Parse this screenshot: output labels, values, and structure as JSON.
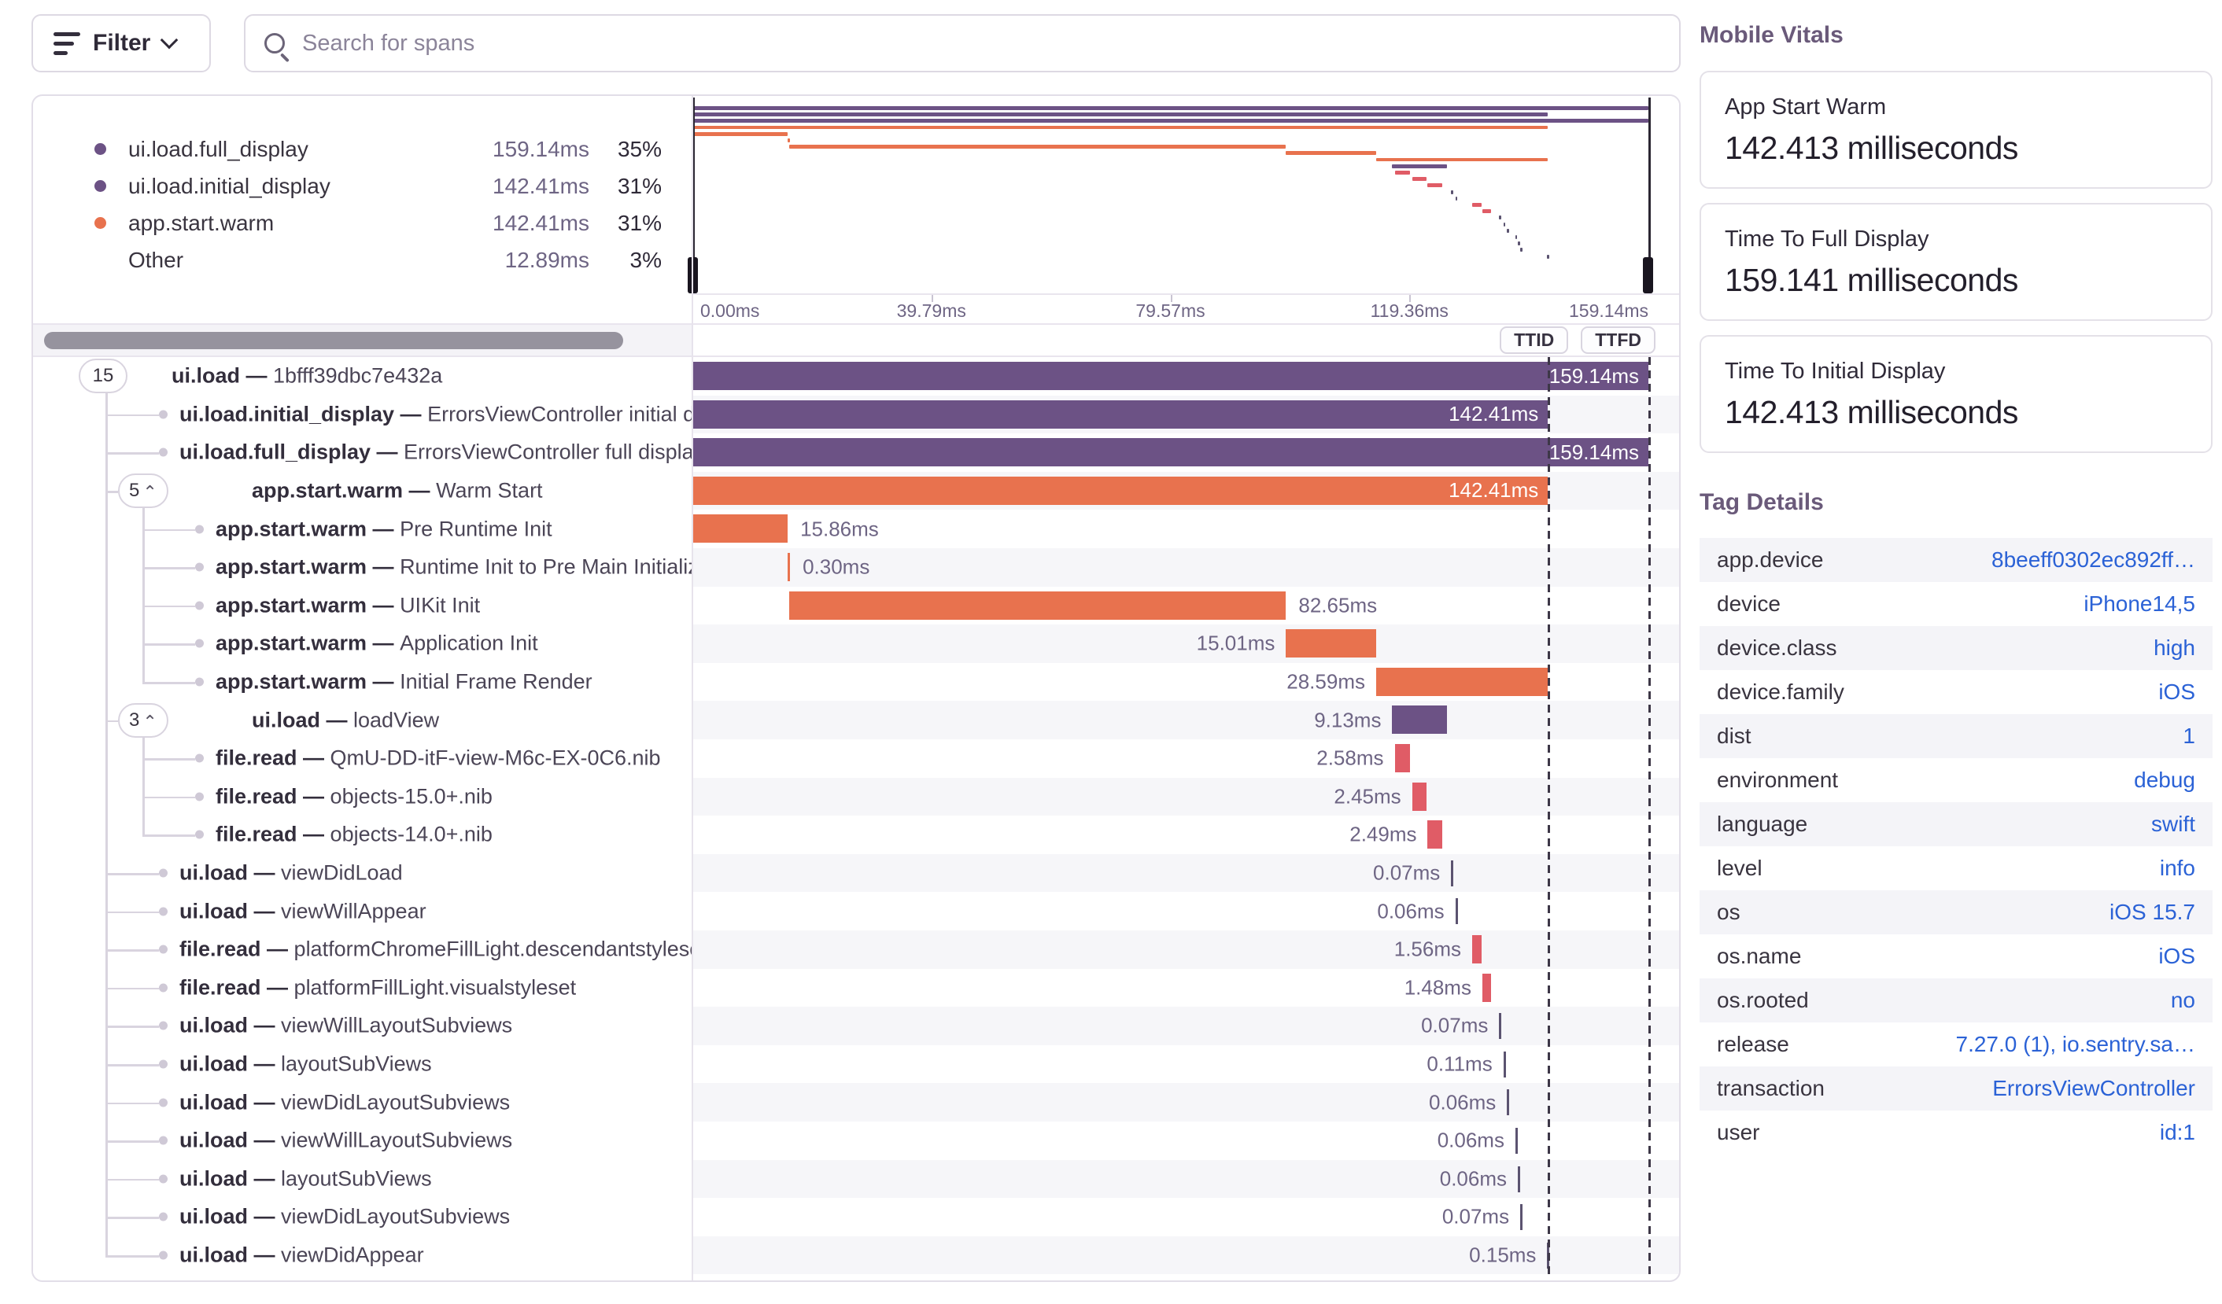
{
  "toolbar": {
    "filter_label": "Filter",
    "search_placeholder": "Search for spans"
  },
  "controls": {
    "ttid_label": "TTID",
    "ttfd_label": "TTFD"
  },
  "colors": {
    "purple": "#6C5285",
    "orange": "#E8724E",
    "pink": "#E05C66",
    "tick": "#5B5370",
    "alt_row": "#f6f6f9",
    "blue": "#2b62d6"
  },
  "legend": {
    "items": [
      {
        "label": "ui.load.full_display",
        "duration": "159.14ms",
        "percent": "35%",
        "color": "#6C5285"
      },
      {
        "label": "ui.load.initial_display",
        "duration": "142.41ms",
        "percent": "31%",
        "color": "#6C5285"
      },
      {
        "label": "app.start.warm",
        "duration": "142.41ms",
        "percent": "31%",
        "color": "#E8724E"
      },
      {
        "label": "Other",
        "duration": "12.89ms",
        "percent": "3%",
        "color": ""
      }
    ]
  },
  "minimap": {
    "axis_ticks": [
      "0.00ms",
      "39.79ms",
      "79.57ms",
      "119.36ms",
      "159.14ms"
    ]
  },
  "trace": {
    "total_ms": 159.141,
    "ttid_ms": 142.413,
    "rows": [
      {
        "op": "ui.load",
        "desc": "1bfff39dbc7e432a",
        "depth": 0,
        "badge": "15",
        "chevron": false,
        "kind": "bar",
        "color": "purple",
        "start": 0,
        "dur": 159.141,
        "label": "159.14ms",
        "placement": "inside"
      },
      {
        "op": "ui.load.initial_display",
        "desc": "ErrorsViewController initial display",
        "depth": 1,
        "kind": "bar",
        "color": "purple",
        "start": 0,
        "dur": 142.413,
        "label": "142.41ms",
        "placement": "inside"
      },
      {
        "op": "ui.load.full_display",
        "desc": "ErrorsViewController full display",
        "depth": 1,
        "kind": "bar",
        "color": "purple",
        "start": 0,
        "dur": 159.141,
        "label": "159.14ms",
        "placement": "inside"
      },
      {
        "op": "app.start.warm",
        "desc": "Warm Start",
        "depth": 1,
        "badge": "5",
        "chevron": true,
        "kind": "bar",
        "color": "orange",
        "start": 0,
        "dur": 142.413,
        "label": "142.41ms",
        "placement": "inside"
      },
      {
        "op": "app.start.warm",
        "desc": "Pre Runtime Init",
        "depth": 2,
        "kind": "bar",
        "color": "orange",
        "start": 0,
        "dur": 15.86,
        "label": "15.86ms",
        "placement": "right"
      },
      {
        "op": "app.start.warm",
        "desc": "Runtime Init to Pre Main Initializers",
        "depth": 2,
        "kind": "bar",
        "color": "orange",
        "start": 15.86,
        "dur": 0.3,
        "label": "0.30ms",
        "placement": "right"
      },
      {
        "op": "app.start.warm",
        "desc": "UIKit Init",
        "depth": 2,
        "kind": "bar",
        "color": "orange",
        "start": 16.16,
        "dur": 82.65,
        "label": "82.65ms",
        "placement": "right"
      },
      {
        "op": "app.start.warm",
        "desc": "Application Init",
        "depth": 2,
        "kind": "bar",
        "color": "orange",
        "start": 98.81,
        "dur": 15.01,
        "label": "15.01ms",
        "placement": "left"
      },
      {
        "op": "app.start.warm",
        "desc": "Initial Frame Render",
        "depth": 2,
        "kind": "bar",
        "color": "orange",
        "start": 113.82,
        "dur": 28.59,
        "label": "28.59ms",
        "placement": "left"
      },
      {
        "op": "ui.load",
        "desc": "loadView",
        "depth": 1,
        "badge": "3",
        "chevron": true,
        "kind": "bar",
        "color": "purple",
        "start": 116.5,
        "dur": 9.13,
        "label": "9.13ms",
        "placement": "left"
      },
      {
        "op": "file.read",
        "desc": "QmU-DD-itF-view-M6c-EX-0C6.nib",
        "depth": 2,
        "kind": "bar",
        "color": "pink",
        "start": 116.9,
        "dur": 2.58,
        "label": "2.58ms",
        "placement": "left"
      },
      {
        "op": "file.read",
        "desc": "objects-15.0+.nib",
        "depth": 2,
        "kind": "bar",
        "color": "pink",
        "start": 119.8,
        "dur": 2.45,
        "label": "2.45ms",
        "placement": "left"
      },
      {
        "op": "file.read",
        "desc": "objects-14.0+.nib",
        "depth": 2,
        "kind": "bar",
        "color": "pink",
        "start": 122.4,
        "dur": 2.49,
        "label": "2.49ms",
        "placement": "left"
      },
      {
        "op": "ui.load",
        "desc": "viewDidLoad",
        "depth": 1,
        "kind": "tick",
        "color": "tick",
        "start": 126.3,
        "dur": 0.07,
        "label": "0.07ms",
        "placement": "left"
      },
      {
        "op": "ui.load",
        "desc": "viewWillAppear",
        "depth": 1,
        "kind": "tick",
        "color": "tick",
        "start": 127.0,
        "dur": 0.06,
        "label": "0.06ms",
        "placement": "left"
      },
      {
        "op": "file.read",
        "desc": "platformChromeFillLight.descendantstyleset",
        "depth": 1,
        "kind": "bar",
        "color": "pink",
        "start": 129.8,
        "dur": 1.56,
        "label": "1.56ms",
        "placement": "left"
      },
      {
        "op": "file.read",
        "desc": "platformFillLight.visualstyleset",
        "depth": 1,
        "kind": "bar",
        "color": "pink",
        "start": 131.5,
        "dur": 1.48,
        "label": "1.48ms",
        "placement": "left"
      },
      {
        "op": "ui.load",
        "desc": "viewWillLayoutSubviews",
        "depth": 1,
        "kind": "tick",
        "color": "tick",
        "start": 134.3,
        "dur": 0.07,
        "label": "0.07ms",
        "placement": "left"
      },
      {
        "op": "ui.load",
        "desc": "layoutSubViews",
        "depth": 1,
        "kind": "tick",
        "color": "tick",
        "start": 135.0,
        "dur": 0.11,
        "label": "0.11ms",
        "placement": "left"
      },
      {
        "op": "ui.load",
        "desc": "viewDidLayoutSubviews",
        "depth": 1,
        "kind": "tick",
        "color": "tick",
        "start": 135.6,
        "dur": 0.06,
        "label": "0.06ms",
        "placement": "left"
      },
      {
        "op": "ui.load",
        "desc": "viewWillLayoutSubviews",
        "depth": 1,
        "kind": "tick",
        "color": "tick",
        "start": 137.0,
        "dur": 0.06,
        "label": "0.06ms",
        "placement": "left"
      },
      {
        "op": "ui.load",
        "desc": "layoutSubViews",
        "depth": 1,
        "kind": "tick",
        "color": "tick",
        "start": 137.4,
        "dur": 0.06,
        "label": "0.06ms",
        "placement": "left"
      },
      {
        "op": "ui.load",
        "desc": "viewDidLayoutSubviews",
        "depth": 1,
        "kind": "tick",
        "color": "tick",
        "start": 137.8,
        "dur": 0.07,
        "label": "0.07ms",
        "placement": "left"
      },
      {
        "op": "ui.load",
        "desc": "viewDidAppear",
        "depth": 1,
        "kind": "tick",
        "color": "tick",
        "start": 142.3,
        "dur": 0.15,
        "label": "0.15ms",
        "placement": "left"
      }
    ]
  },
  "vitals": {
    "heading": "Mobile Vitals",
    "cards": [
      {
        "label": "App Start Warm",
        "value": "142.413 milliseconds"
      },
      {
        "label": "Time To Full Display",
        "value": "159.141 milliseconds"
      },
      {
        "label": "Time To Initial Display",
        "value": "142.413 milliseconds"
      }
    ]
  },
  "tags": {
    "heading": "Tag Details",
    "rows": [
      {
        "key": "app.device",
        "value": "8beeff0302ec892ff…"
      },
      {
        "key": "device",
        "value": "iPhone14,5"
      },
      {
        "key": "device.class",
        "value": "high"
      },
      {
        "key": "device.family",
        "value": "iOS"
      },
      {
        "key": "dist",
        "value": "1"
      },
      {
        "key": "environment",
        "value": "debug"
      },
      {
        "key": "language",
        "value": "swift"
      },
      {
        "key": "level",
        "value": "info"
      },
      {
        "key": "os",
        "value": "iOS 15.7"
      },
      {
        "key": "os.name",
        "value": "iOS"
      },
      {
        "key": "os.rooted",
        "value": "no"
      },
      {
        "key": "release",
        "value": "7.27.0 (1), io.sentry.sa…"
      },
      {
        "key": "transaction",
        "value": "ErrorsViewController"
      },
      {
        "key": "user",
        "value": "id:1"
      }
    ]
  }
}
